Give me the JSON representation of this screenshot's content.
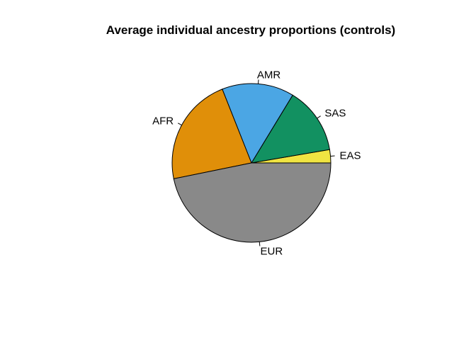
{
  "chart_data": {
    "type": "pie",
    "title": "Average individual ancestry proportions (controls)",
    "start_angle_deg": 0,
    "direction": "counterclockwise",
    "slices": [
      {
        "label": "EAS",
        "value": 0.027,
        "color": "#F0E442"
      },
      {
        "label": "SAS",
        "value": 0.136,
        "color": "#129161"
      },
      {
        "label": "AMR",
        "value": 0.147,
        "color": "#4BA6E4"
      },
      {
        "label": "AFR",
        "value": 0.222,
        "color": "#E08F09"
      },
      {
        "label": "EUR",
        "value": 0.468,
        "color": "#898989"
      }
    ]
  }
}
